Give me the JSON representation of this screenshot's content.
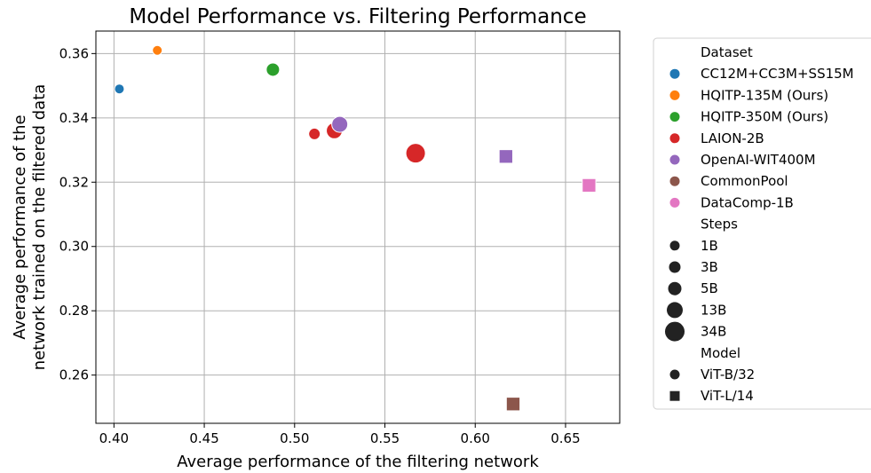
{
  "chart_data": {
    "type": "scatter",
    "title": "Model Performance vs. Filtering Performance",
    "xlabel": "Average performance of the filtering network",
    "ylabel_lines": [
      "Average performance of the",
      "network trained on the filtered data"
    ],
    "xlim": [
      0.39,
      0.68
    ],
    "ylim": [
      0.245,
      0.367
    ],
    "xticks": [
      0.4,
      0.45,
      0.5,
      0.55,
      0.6,
      0.65
    ],
    "xtick_labels": [
      "0.40",
      "0.45",
      "0.50",
      "0.55",
      "0.60",
      "0.65"
    ],
    "yticks": [
      0.26,
      0.28,
      0.3,
      0.32,
      0.34,
      0.36
    ],
    "ytick_labels": [
      "0.26",
      "0.28",
      "0.30",
      "0.32",
      "0.34",
      "0.36"
    ],
    "grid": true,
    "legend_placement": "outside-right",
    "legend": {
      "dataset_title": "Dataset",
      "datasets": [
        {
          "name": "CC12M+CC3M+SS15M",
          "color": "#1f77b4"
        },
        {
          "name": "HQITP-135M (Ours)",
          "color": "#ff7f0e"
        },
        {
          "name": "HQITP-350M (Ours)",
          "color": "#2ca02c"
        },
        {
          "name": "LAION-2B",
          "color": "#d62728"
        },
        {
          "name": "OpenAI-WIT400M",
          "color": "#9467bd"
        },
        {
          "name": "CommonPool",
          "color": "#8c564b"
        },
        {
          "name": "DataComp-1B",
          "color": "#e377c2"
        }
      ],
      "steps_title": "Steps",
      "steps": [
        "1B",
        "3B",
        "5B",
        "13B",
        "34B"
      ],
      "model_title": "Model",
      "models": [
        {
          "name": "ViT-B/32",
          "marker": "circle"
        },
        {
          "name": "ViT-L/14",
          "marker": "square"
        }
      ]
    },
    "points": [
      {
        "x": 0.403,
        "y": 0.349,
        "dataset": "CC12M+CC3M+SS15M",
        "steps": "1B",
        "model": "ViT-B/32"
      },
      {
        "x": 0.424,
        "y": 0.361,
        "dataset": "HQITP-135M (Ours)",
        "steps": "1B",
        "model": "ViT-B/32"
      },
      {
        "x": 0.488,
        "y": 0.355,
        "dataset": "HQITP-350M (Ours)",
        "steps": "5B",
        "model": "ViT-B/32"
      },
      {
        "x": 0.511,
        "y": 0.335,
        "dataset": "LAION-2B",
        "steps": "3B",
        "model": "ViT-B/32"
      },
      {
        "x": 0.522,
        "y": 0.336,
        "dataset": "LAION-2B",
        "steps": "13B",
        "model": "ViT-B/32"
      },
      {
        "x": 0.567,
        "y": 0.329,
        "dataset": "LAION-2B",
        "steps": "34B",
        "model": "ViT-B/32"
      },
      {
        "x": 0.525,
        "y": 0.338,
        "dataset": "OpenAI-WIT400M",
        "steps": "13B",
        "model": "ViT-B/32"
      },
      {
        "x": 0.617,
        "y": 0.328,
        "dataset": "OpenAI-WIT400M",
        "steps": "13B",
        "model": "ViT-L/14"
      },
      {
        "x": 0.621,
        "y": 0.251,
        "dataset": "CommonPool",
        "steps": "13B",
        "model": "ViT-L/14"
      },
      {
        "x": 0.663,
        "y": 0.319,
        "dataset": "DataComp-1B",
        "steps": "13B",
        "model": "ViT-L/14"
      }
    ]
  }
}
